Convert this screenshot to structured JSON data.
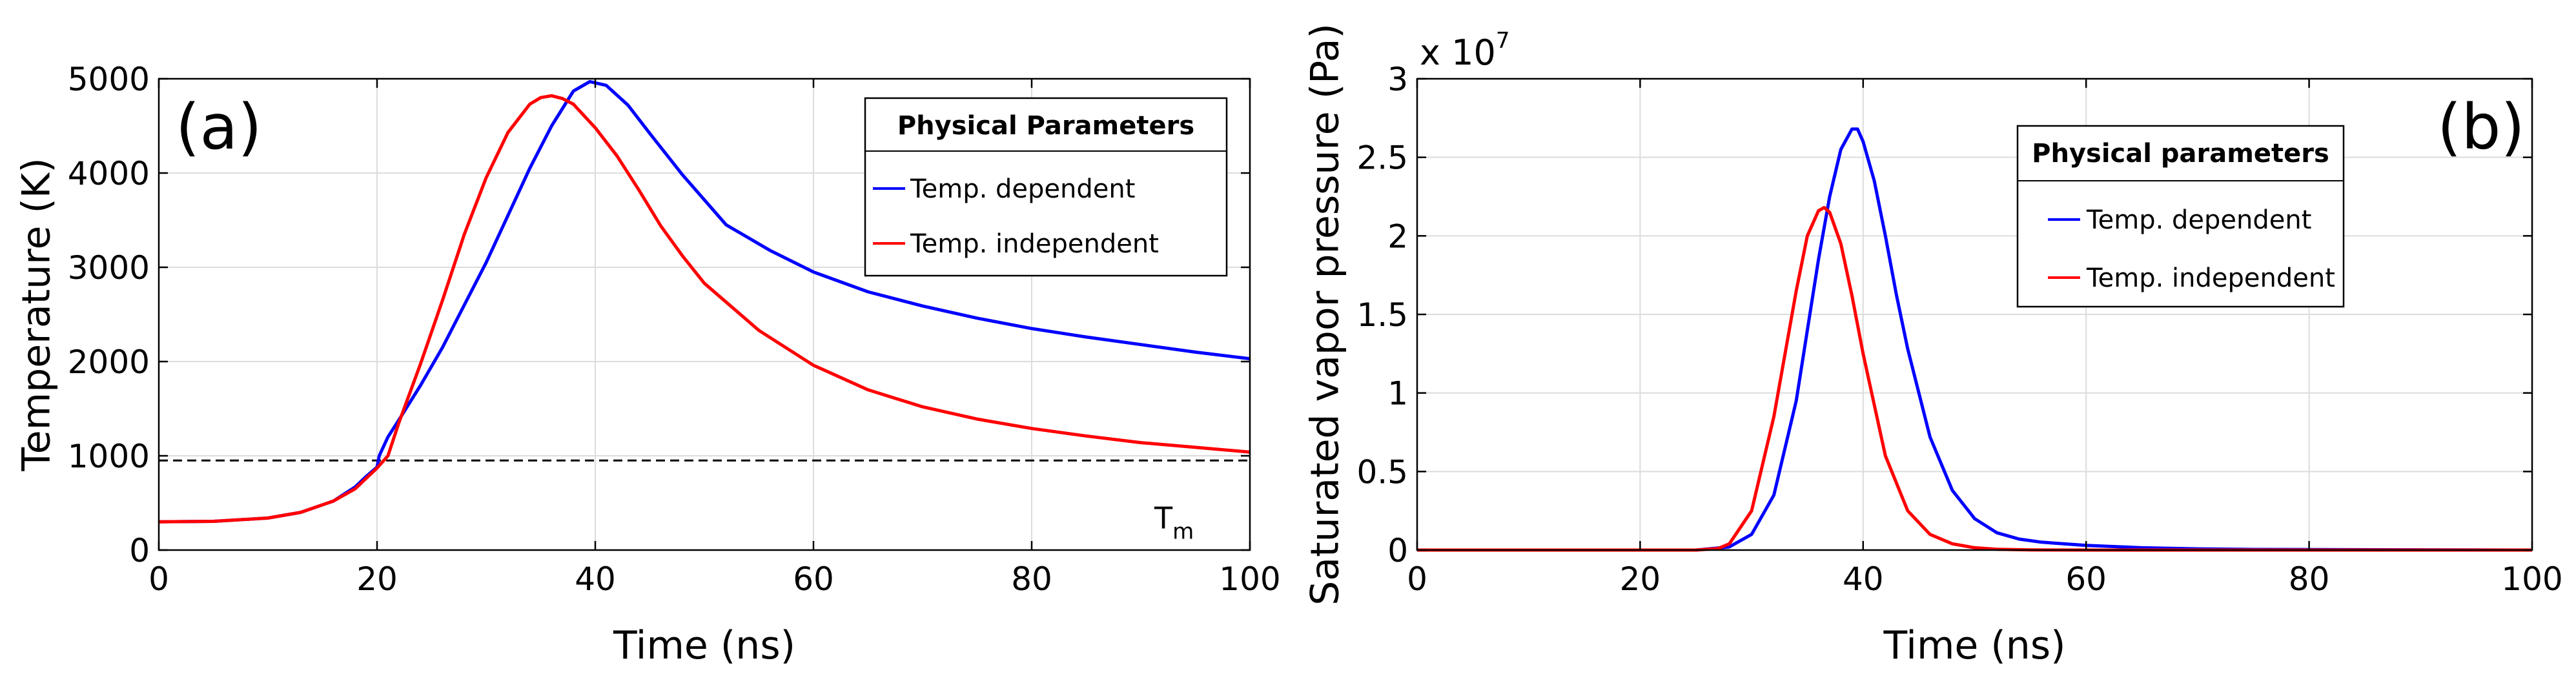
{
  "chart_data": [
    {
      "type": "line",
      "panel_label": "(a)",
      "xlabel": "Time (ns)",
      "ylabel": "Temperature (K)",
      "xlim": [
        0,
        100
      ],
      "ylim": [
        0,
        5000
      ],
      "xticks": [
        0,
        20,
        40,
        60,
        80,
        100
      ],
      "yticks": [
        0,
        1000,
        2000,
        3000,
        4000,
        5000
      ],
      "grid": true,
      "legend": {
        "title": "Physical Parameters",
        "placement": "top-right",
        "entries": [
          "Temp. dependent",
          "Temp. independent"
        ]
      },
      "reference_line": {
        "y": 950,
        "label": "T",
        "label_sub": "m",
        "style": "dashed"
      },
      "series": [
        {
          "name": "Temp. dependent",
          "color": "#0000ff",
          "x": [
            0,
            5,
            10,
            13,
            16,
            18,
            19,
            20,
            20.2,
            21,
            22,
            24,
            26,
            28,
            30,
            32,
            34,
            36,
            38,
            39.5,
            41,
            43,
            45,
            48,
            52,
            56,
            60,
            65,
            70,
            75,
            80,
            85,
            90,
            95,
            100
          ],
          "y": [
            300,
            305,
            340,
            400,
            520,
            670,
            780,
            880,
            1000,
            1200,
            1380,
            1750,
            2150,
            2600,
            3050,
            3550,
            4050,
            4500,
            4870,
            4970,
            4930,
            4720,
            4420,
            3980,
            3450,
            3180,
            2950,
            2740,
            2590,
            2460,
            2350,
            2260,
            2180,
            2100,
            2030
          ]
        },
        {
          "name": "Temp. independent",
          "color": "#ff0000",
          "x": [
            0,
            5,
            10,
            13,
            16,
            18,
            19,
            20,
            21,
            22,
            24,
            26,
            28,
            30,
            32,
            34,
            35,
            36,
            37,
            38,
            40,
            42,
            44,
            46,
            48,
            50,
            55,
            60,
            65,
            70,
            75,
            80,
            85,
            90,
            95,
            100
          ],
          "y": [
            300,
            305,
            340,
            400,
            520,
            650,
            760,
            870,
            1000,
            1350,
            1980,
            2650,
            3350,
            3950,
            4430,
            4730,
            4800,
            4820,
            4790,
            4730,
            4480,
            4180,
            3820,
            3440,
            3120,
            2830,
            2330,
            1960,
            1700,
            1520,
            1390,
            1290,
            1210,
            1140,
            1090,
            1040
          ]
        }
      ]
    },
    {
      "type": "line",
      "panel_label": "(b)",
      "xlabel": "Time (ns)",
      "ylabel": "Saturated vapor pressure (Pa)",
      "multiplier": "x 10",
      "multiplier_exp": "7",
      "xlim": [
        0,
        100
      ],
      "ylim": [
        0,
        3
      ],
      "xticks": [
        0,
        20,
        40,
        60,
        80,
        100
      ],
      "yticks": [
        0,
        0.5,
        1,
        1.5,
        2,
        2.5,
        3
      ],
      "grid": true,
      "legend": {
        "title": "Physical parameters",
        "placement": "top-center",
        "entries": [
          "Temp. dependent",
          "Temp. independent"
        ]
      },
      "series": [
        {
          "name": "Temp. dependent",
          "color": "#0000ff",
          "x": [
            0,
            25,
            28,
            30,
            32,
            34,
            36,
            37,
            38,
            39,
            39.5,
            40,
            41,
            42,
            43,
            44,
            46,
            48,
            50,
            52,
            54,
            56,
            60,
            65,
            70,
            75,
            100
          ],
          "y": [
            0,
            0,
            0.02,
            0.1,
            0.35,
            0.95,
            1.85,
            2.25,
            2.55,
            2.68,
            2.68,
            2.6,
            2.35,
            2.0,
            1.62,
            1.28,
            0.72,
            0.38,
            0.2,
            0.11,
            0.07,
            0.05,
            0.03,
            0.015,
            0.008,
            0.004,
            0
          ]
        },
        {
          "name": "Temp. independent",
          "color": "#ff0000",
          "x": [
            0,
            25,
            27,
            28,
            30,
            32,
            34,
            35,
            36,
            36.5,
            37,
            38,
            39,
            40,
            42,
            44,
            46,
            48,
            50,
            52,
            55,
            60,
            100
          ],
          "y": [
            0,
            0,
            0.01,
            0.04,
            0.25,
            0.85,
            1.65,
            2.0,
            2.16,
            2.18,
            2.15,
            1.95,
            1.62,
            1.25,
            0.6,
            0.25,
            0.1,
            0.04,
            0.015,
            0.005,
            0.001,
            0,
            0
          ]
        }
      ]
    }
  ]
}
